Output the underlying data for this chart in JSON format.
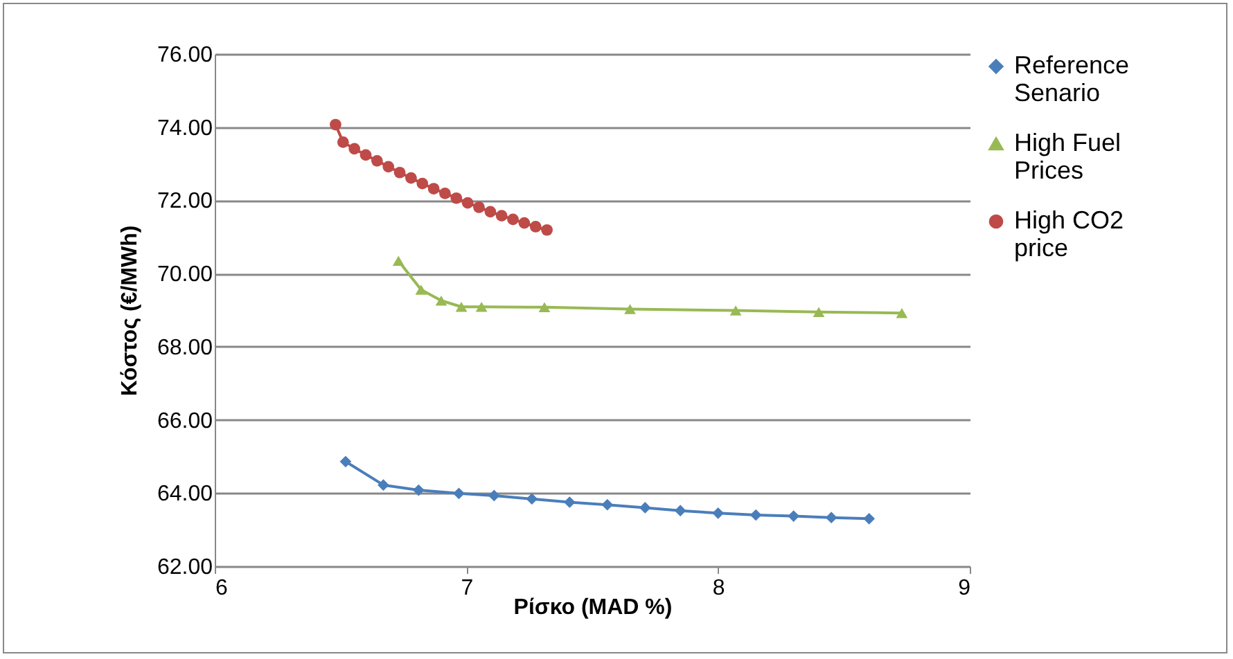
{
  "chart_data": {
    "type": "line",
    "xlabel": "Ρίσκο (MAD %)",
    "ylabel": "Κόστος (€/MWh)",
    "xlim": [
      6,
      9
    ],
    "xticks": [
      6,
      7,
      8,
      9
    ],
    "ylim": [
      62,
      76
    ],
    "yticks": [
      {
        "value": 62,
        "label": "62.00"
      },
      {
        "value": 64,
        "label": "64.00"
      },
      {
        "value": 66,
        "label": "66.00"
      },
      {
        "value": 68,
        "label": "68.00"
      },
      {
        "value": 70,
        "label": "70.00"
      },
      {
        "value": 72,
        "label": "72.00"
      },
      {
        "value": 74,
        "label": "74.00"
      },
      {
        "value": 76,
        "label": "76.00"
      }
    ],
    "grid": "y",
    "legend": "right",
    "series": [
      {
        "name": "Reference Senario",
        "color": "#4a7ebb",
        "marker": "diamond",
        "x": [
          6.52,
          6.67,
          6.81,
          6.97,
          7.11,
          7.26,
          7.41,
          7.56,
          7.71,
          7.85,
          8.0,
          8.15,
          8.3,
          8.45,
          8.6
        ],
        "values": [
          64.86,
          64.22,
          64.08,
          63.99,
          63.93,
          63.84,
          63.75,
          63.68,
          63.6,
          63.52,
          63.45,
          63.4,
          63.37,
          63.33,
          63.3
        ]
      },
      {
        "name": "High Fuel Prices",
        "color": "#98b954",
        "marker": "triangle",
        "x": [
          6.73,
          6.82,
          6.9,
          6.98,
          7.06,
          7.31,
          7.65,
          8.07,
          8.4,
          8.73
        ],
        "values": [
          70.35,
          69.56,
          69.26,
          69.09,
          69.09,
          69.08,
          69.03,
          68.99,
          68.95,
          68.92
        ]
      },
      {
        "name": "High CO2 price",
        "color": "#be4b48",
        "marker": "circle",
        "x": [
          6.48,
          6.51,
          6.555,
          6.6,
          6.645,
          6.69,
          6.735,
          6.78,
          6.825,
          6.87,
          6.915,
          6.96,
          7.005,
          7.05,
          7.095,
          7.14,
          7.185,
          7.23,
          7.275,
          7.32
        ],
        "values": [
          74.07,
          73.59,
          73.41,
          73.24,
          73.08,
          72.92,
          72.76,
          72.61,
          72.46,
          72.32,
          72.19,
          72.06,
          71.93,
          71.81,
          71.69,
          71.58,
          71.48,
          71.38,
          71.28,
          71.19
        ]
      }
    ]
  }
}
